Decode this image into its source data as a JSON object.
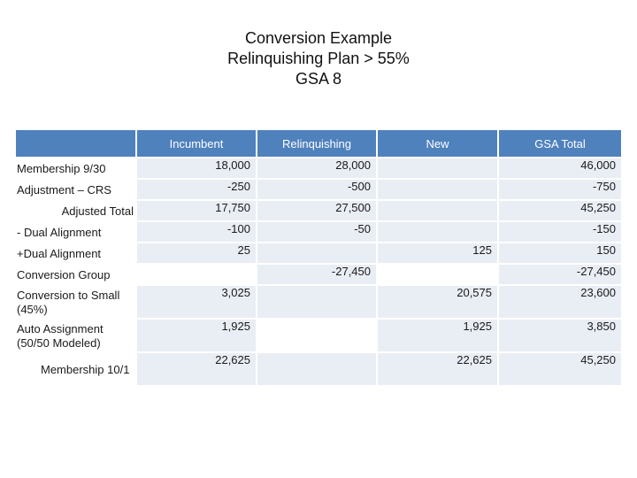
{
  "title": {
    "line1": "Conversion Example",
    "line2": "Relinquishing Plan > 55%",
    "line3": "GSA 8"
  },
  "columns": [
    "",
    "Incumbent",
    "Relinquishing",
    "New",
    "GSA Total"
  ],
  "rows": [
    {
      "label": "Membership 9/30",
      "incumbent": "18,000",
      "relinquishing": "28,000",
      "new": "",
      "total": "46,000"
    },
    {
      "label": "Adjustment – CRS",
      "incumbent": "-250",
      "relinquishing": "-500",
      "new": "",
      "total": "-750"
    },
    {
      "label": "Adjusted Total",
      "incumbent": "17,750",
      "relinquishing": "27,500",
      "new": "",
      "total": "45,250"
    },
    {
      "label": "- Dual Alignment",
      "incumbent": "-100",
      "relinquishing": "-50",
      "new": "",
      "total": "-150"
    },
    {
      "label": "+Dual Alignment",
      "incumbent": "25",
      "relinquishing": "",
      "new": "125",
      "total": "150"
    },
    {
      "label": "Conversion Group",
      "incumbent": "",
      "relinquishing": "-27,450",
      "new": "",
      "total": "-27,450"
    },
    {
      "label": "Conversion to Small (45%)",
      "incumbent": "3,025",
      "relinquishing": "",
      "new": "20,575",
      "total": "23,600"
    },
    {
      "label": "Auto Assignment (50/50 Modeled)",
      "incumbent": "1,925",
      "relinquishing": "",
      "new": "1,925",
      "total": "3,850"
    },
    {
      "label": "Membership 10/1",
      "incumbent": "22,625",
      "relinquishing": "",
      "new": "22,625",
      "total": "45,250"
    }
  ]
}
